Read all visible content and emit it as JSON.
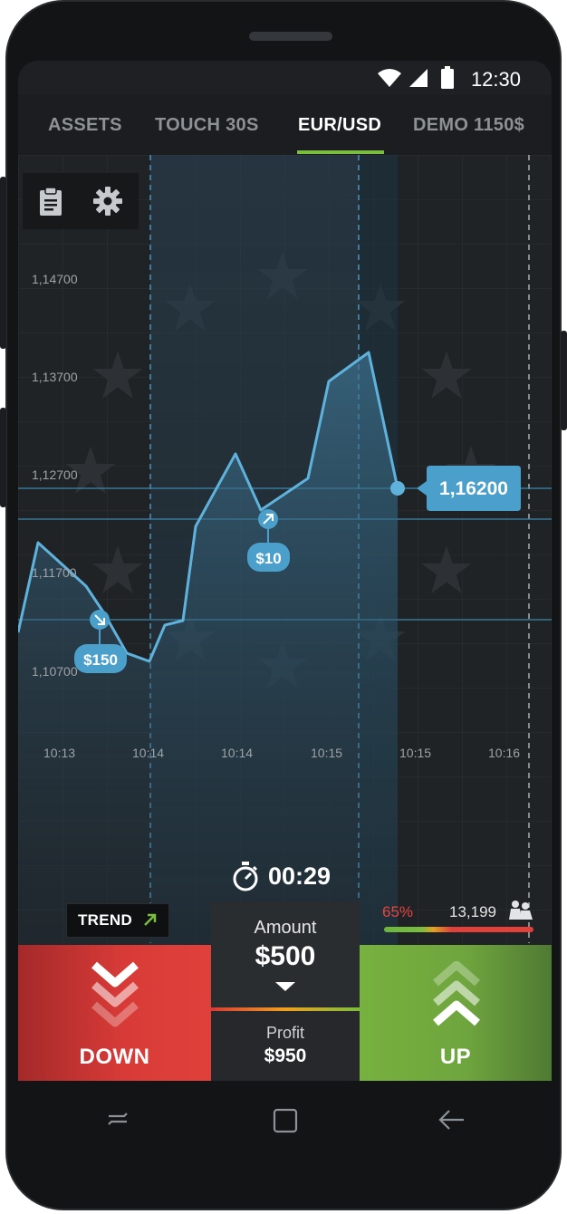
{
  "status": {
    "time": "12:30"
  },
  "tabs": [
    {
      "label": "ASSETS"
    },
    {
      "label": "TOUCH 30S"
    },
    {
      "label": "EUR/USD"
    },
    {
      "label": "DEMO 1150$"
    }
  ],
  "chart": {
    "y_labels": [
      "1,14700",
      "1,13700",
      "1,12700",
      "1,11700",
      "1,10700"
    ],
    "x_labels": [
      "10:13",
      "10:14",
      "10:14",
      "10:15",
      "10:15",
      "10:16"
    ],
    "current_price": "1,16200",
    "trade_up_amount": "$10",
    "trade_down_amount": "$150"
  },
  "trend": {
    "label": "TREND"
  },
  "timer": {
    "value": "00:29"
  },
  "sentiment": {
    "percent": "65%",
    "traders": "13,199"
  },
  "buttons": {
    "down": "DOWN",
    "up": "UP"
  },
  "amount": {
    "label": "Amount",
    "value": "$500"
  },
  "profit": {
    "label": "Profit",
    "value": "$950"
  },
  "colors": {
    "down": "#d83b37",
    "up": "#77b13f",
    "accent": "#7bbd3e",
    "price_tag": "#4a9fcb"
  },
  "icons": [
    "wifi-icon",
    "signal-icon",
    "battery-icon",
    "clipboard-icon",
    "gear-icon",
    "arrow-up-right-icon",
    "stopwatch-icon",
    "users-icon",
    "chevrons-down-icon",
    "chevrons-up-icon",
    "triangle-down-icon",
    "recents-icon",
    "home-icon",
    "back-icon"
  ]
}
